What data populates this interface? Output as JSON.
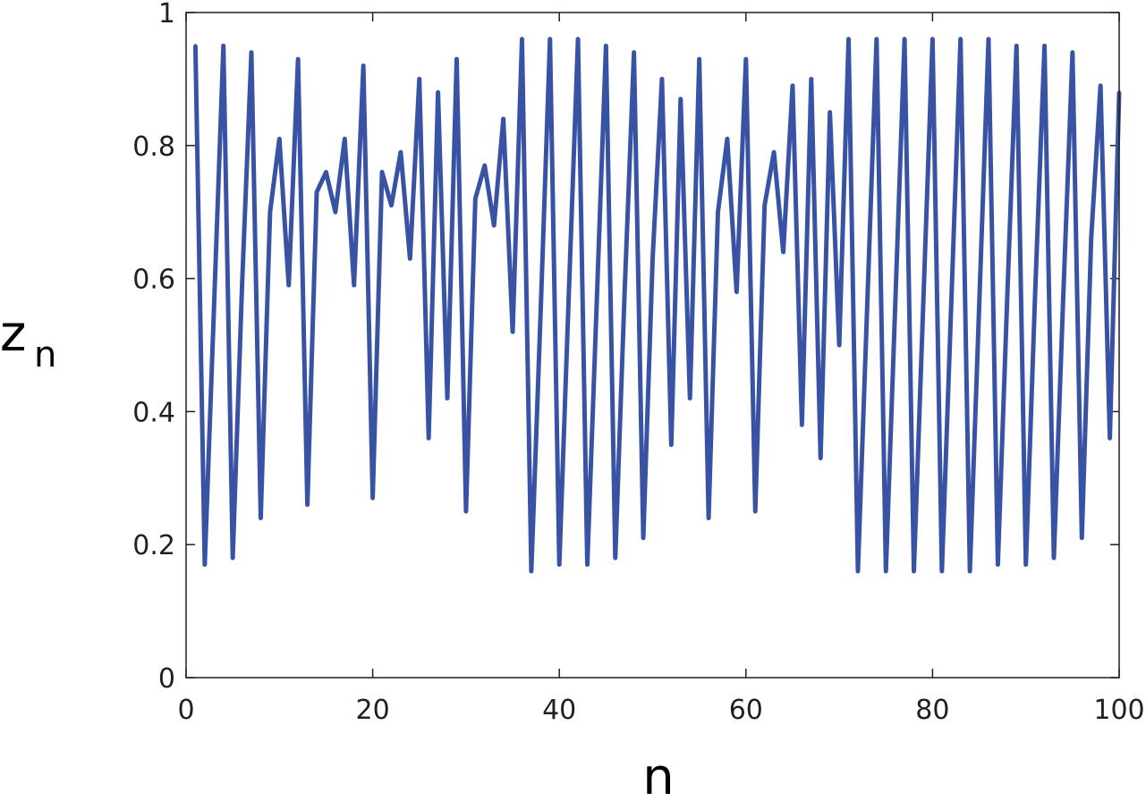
{
  "chart_data": {
    "type": "line",
    "title": "",
    "xlabel": "n",
    "ylabel": "z",
    "ylabel_subscript": "n",
    "xlim": [
      0,
      100
    ],
    "ylim": [
      0,
      1
    ],
    "xticks": [
      0,
      20,
      40,
      60,
      80,
      100
    ],
    "xtick_labels": [
      "0",
      "20",
      "40",
      "60",
      "80",
      "100"
    ],
    "yticks": [
      0,
      0.2,
      0.4,
      0.6,
      0.8,
      1
    ],
    "ytick_labels": [
      "0",
      "0.2",
      "0.4",
      "0.6",
      "0.8",
      "1"
    ],
    "grid": false,
    "line_color": "#3953a4",
    "series": [
      {
        "x": [
          1,
          2,
          3,
          4,
          5,
          6,
          7,
          8,
          9,
          10,
          11,
          12,
          13,
          14,
          15,
          16,
          17,
          18,
          19,
          20,
          21,
          22,
          23,
          24,
          25,
          26,
          27,
          28,
          29,
          30,
          31,
          32,
          33,
          34,
          35,
          36,
          37,
          38,
          39,
          40,
          41,
          42,
          43,
          44,
          45,
          46,
          47,
          48,
          49,
          50,
          51,
          52,
          53,
          54,
          55,
          56,
          57,
          58,
          59,
          60,
          61,
          62,
          63,
          64,
          65,
          66,
          67,
          68,
          69,
          70,
          71,
          72,
          73,
          74,
          75,
          76,
          77,
          78,
          79,
          80,
          81,
          82,
          83,
          84,
          85,
          86,
          87,
          88,
          89,
          90,
          91,
          92,
          93,
          94,
          95,
          96,
          97,
          98,
          99,
          100
        ],
        "values": [
          0.95,
          0.17,
          0.56,
          0.95,
          0.18,
          0.59,
          0.94,
          0.24,
          0.7,
          0.81,
          0.59,
          0.93,
          0.26,
          0.73,
          0.76,
          0.7,
          0.81,
          0.59,
          0.92,
          0.27,
          0.76,
          0.71,
          0.79,
          0.63,
          0.9,
          0.36,
          0.88,
          0.42,
          0.93,
          0.25,
          0.72,
          0.77,
          0.68,
          0.84,
          0.52,
          0.96,
          0.16,
          0.55,
          0.96,
          0.17,
          0.57,
          0.96,
          0.17,
          0.56,
          0.95,
          0.18,
          0.58,
          0.94,
          0.21,
          0.63,
          0.9,
          0.35,
          0.87,
          0.42,
          0.93,
          0.24,
          0.7,
          0.81,
          0.58,
          0.93,
          0.25,
          0.71,
          0.79,
          0.64,
          0.89,
          0.38,
          0.9,
          0.33,
          0.85,
          0.5,
          0.96,
          0.16,
          0.56,
          0.96,
          0.16,
          0.56,
          0.96,
          0.16,
          0.56,
          0.96,
          0.16,
          0.56,
          0.96,
          0.16,
          0.56,
          0.96,
          0.17,
          0.57,
          0.95,
          0.17,
          0.58,
          0.95,
          0.18,
          0.57,
          0.94,
          0.21,
          0.66,
          0.89,
          0.36,
          0.88
        ]
      }
    ]
  }
}
